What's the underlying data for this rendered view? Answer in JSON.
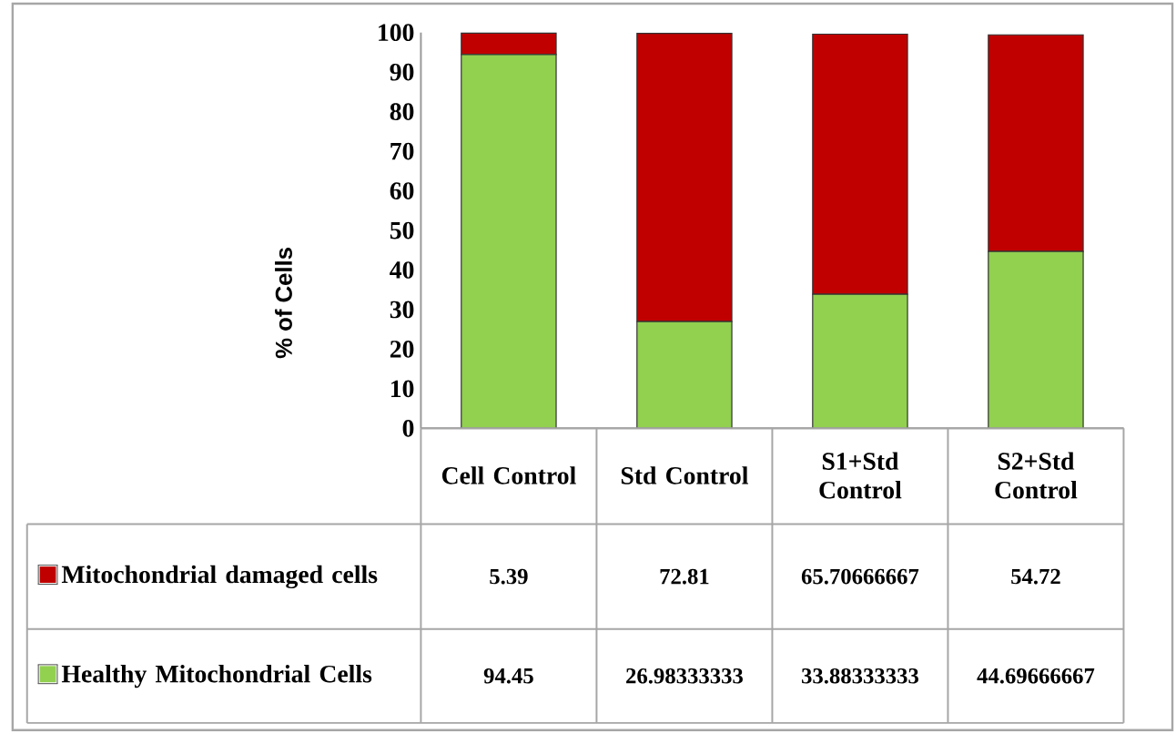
{
  "chart_data": {
    "type": "bar",
    "stacked": true,
    "ylabel": "% of Cells",
    "categories": [
      "Cell Control",
      "Std Control",
      "S1+Std Control",
      "S2+Std Control"
    ],
    "series": [
      {
        "name": "Healthy Mitochondrial Cells",
        "color": "#92d050",
        "values": [
          94.45,
          26.98333333,
          33.88333333,
          44.69666667
        ]
      },
      {
        "name": "Mitochondrial damaged cells",
        "color": "#c00000",
        "values": [
          5.39,
          72.81,
          65.70666667,
          54.72
        ]
      }
    ],
    "ylim": [
      0,
      100
    ],
    "yticks": [
      0,
      10,
      20,
      30,
      40,
      50,
      60,
      70,
      80,
      90,
      100
    ],
    "data_labels": true,
    "legend": "bottom",
    "grid": false
  }
}
